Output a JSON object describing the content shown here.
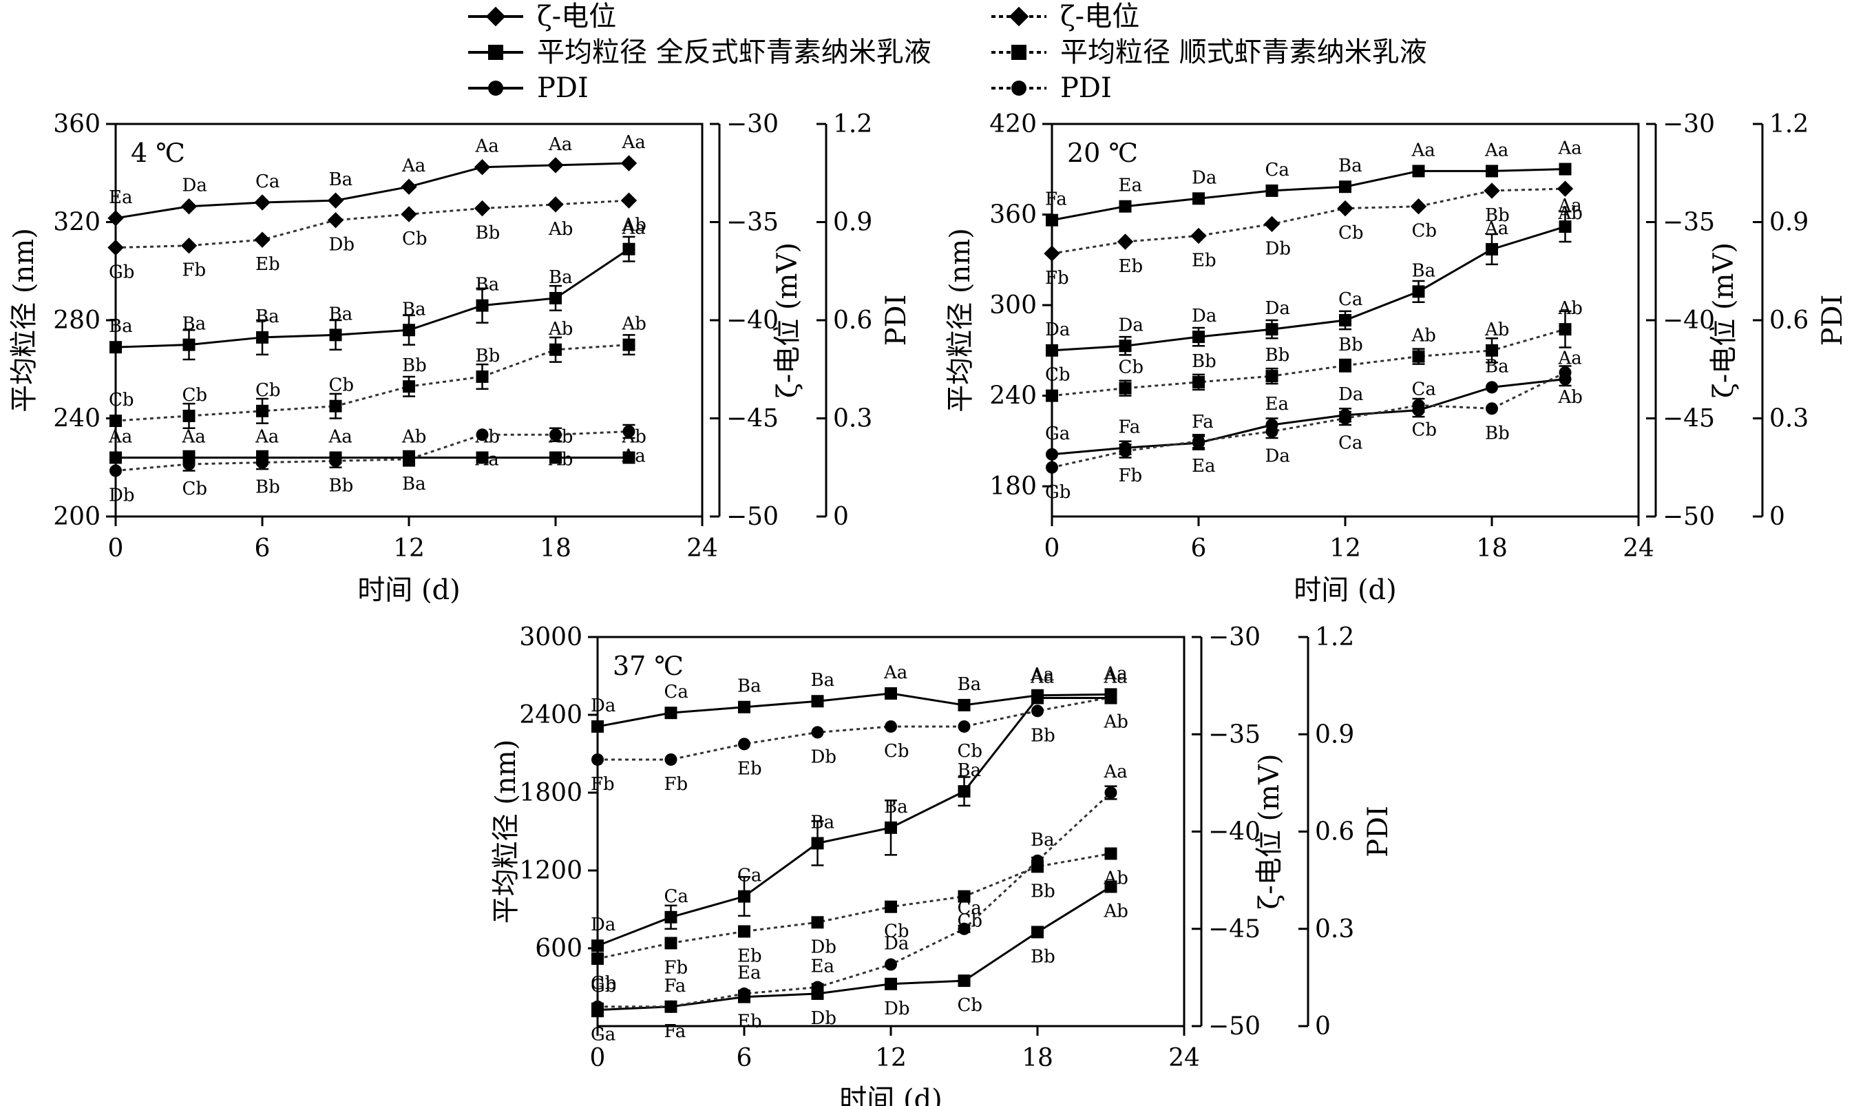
{
  "legend": {
    "groups": [
      {
        "title": "全反式虾青素纳米乳液",
        "style": "solid",
        "items": [
          {
            "marker": "diamond",
            "label": "ζ-电位"
          },
          {
            "marker": "square",
            "label": "平均粒径 全反式虾青素纳米乳液"
          },
          {
            "marker": "circle",
            "label": "PDI"
          }
        ]
      },
      {
        "title": "顺式虾青素纳米乳液",
        "style": "dotted",
        "items": [
          {
            "marker": "diamond",
            "label": "ζ-电位"
          },
          {
            "marker": "square",
            "label": "平均粒径 顺式虾青素纳米乳液"
          },
          {
            "marker": "circle",
            "label": "PDI"
          }
        ]
      }
    ]
  },
  "chart_data": [
    {
      "type": "line",
      "title": "4 ℃",
      "xlabel": "时间 (d)",
      "ylabel": "平均粒径 (nm)",
      "y2label": "ζ-电位 (mV)",
      "y3label": "PDI",
      "x": [
        0,
        3,
        6,
        9,
        12,
        15,
        18,
        21
      ],
      "xlim": [
        0,
        24
      ],
      "xticks": [
        0,
        6,
        12,
        18,
        24
      ],
      "ylim": [
        200,
        360
      ],
      "yticks": [
        200,
        240,
        280,
        320,
        360
      ],
      "y2lim": [
        -50,
        -30
      ],
      "y2ticks": [
        -50,
        -45,
        -40,
        -35,
        -30
      ],
      "y3lim": [
        0,
        1.2
      ],
      "y3ticks": [
        "0",
        "0.3",
        "0.6",
        "0.9",
        "1.2"
      ],
      "series": [
        {
          "name": "ζ-电位 全反式",
          "axis": "zeta",
          "style": "solid",
          "marker": "diamond",
          "values": [
            -34.8,
            -34.2,
            -34.0,
            -33.9,
            -33.2,
            -32.2,
            -32.1,
            -32.0
          ],
          "errors": [
            0,
            0,
            0,
            0,
            0,
            0,
            0,
            0
          ],
          "labels": [
            "Ea",
            "Da",
            "Ca",
            "Ba",
            "Aa",
            "Aa",
            "Aa",
            "Aa"
          ],
          "label_pos": "above"
        },
        {
          "name": "ζ-电位 顺式",
          "axis": "zeta",
          "style": "dotted",
          "marker": "diamond",
          "values": [
            -36.3,
            -36.2,
            -35.9,
            -34.9,
            -34.6,
            -34.3,
            -34.1,
            -33.9
          ],
          "errors": [
            0,
            0,
            0,
            0,
            0,
            0,
            0,
            0
          ],
          "labels": [
            "Gb",
            "Fb",
            "Eb",
            "Db",
            "Cb",
            "Bb",
            "Ab",
            "Ab"
          ],
          "label_pos": "below"
        },
        {
          "name": "平均粒径 全反式",
          "axis": "size",
          "style": "solid",
          "marker": "square",
          "values": [
            269,
            270,
            273,
            274,
            276,
            286,
            289,
            309
          ],
          "errors": [
            2,
            6,
            7,
            6,
            6,
            7,
            5,
            5
          ],
          "labels": [
            "Ba",
            "Ba",
            "Ba",
            "Ba",
            "Ba",
            "Ba",
            "Ba",
            "Aa"
          ],
          "label_pos": "above"
        },
        {
          "name": "平均粒径 顺式",
          "axis": "size",
          "style": "dotted",
          "marker": "square",
          "values": [
            239,
            241,
            243,
            245,
            253,
            257,
            268,
            270
          ],
          "errors": [
            1,
            5,
            5,
            5,
            4,
            5,
            5,
            4
          ],
          "labels": [
            "Cb",
            "Cb",
            "Cb",
            "Cb",
            "Bb",
            "Bb",
            "Ab",
            "Ab"
          ],
          "label_pos": "above"
        },
        {
          "name": "PDI 全反式",
          "axis": "pdi",
          "style": "solid",
          "marker": "square",
          "values": [
            0.18,
            0.18,
            0.18,
            0.18,
            0.18,
            0.18,
            0.18,
            0.18
          ],
          "errors": [
            0,
            0.02,
            0.02,
            0.01,
            0.02,
            0,
            0,
            0
          ],
          "labels": [
            "Aa",
            "Aa",
            "Aa",
            "Aa",
            "Ab",
            "Ab",
            "Ab",
            "Ab"
          ],
          "label_pos": "above"
        },
        {
          "name": "PDI 顺式",
          "axis": "pdi",
          "style": "dotted",
          "marker": "circle",
          "values": [
            0.14,
            0.16,
            0.165,
            0.17,
            0.175,
            0.25,
            0.25,
            0.26
          ],
          "errors": [
            0,
            0.02,
            0.02,
            0.02,
            0.02,
            0,
            0.02,
            0.02
          ],
          "labels": [
            "Db",
            "Cb",
            "Bb",
            "Bb",
            "Ba",
            "Aa",
            "Ab",
            "Aa"
          ],
          "label_pos": "below"
        }
      ]
    },
    {
      "type": "line",
      "title": "20 ℃",
      "xlabel": "时间 (d)",
      "ylabel": "平均粒径 (nm)",
      "y2label": "ζ-电位 (mV)",
      "y3label": "PDI",
      "x": [
        0,
        3,
        6,
        9,
        12,
        15,
        18,
        21
      ],
      "xlim": [
        0,
        24
      ],
      "xticks": [
        0,
        6,
        12,
        18,
        24
      ],
      "ylim": [
        160,
        420
      ],
      "yticks": [
        180,
        240,
        300,
        360,
        420
      ],
      "y2lim": [
        -50,
        -30
      ],
      "y2ticks": [
        -50,
        -45,
        -40,
        -35,
        -30
      ],
      "y3lim": [
        0,
        1.2
      ],
      "y3ticks": [
        "0",
        "0.3",
        "0.6",
        "0.9",
        "1.2"
      ],
      "series": [
        {
          "name": "ζ-电位 全反式",
          "axis": "zeta",
          "style": "solid",
          "marker": "square",
          "values": [
            -34.9,
            -34.2,
            -33.8,
            -33.4,
            -33.2,
            -32.4,
            -32.4,
            -32.3
          ],
          "errors": [
            0,
            0,
            0,
            0,
            0,
            0,
            0,
            0
          ],
          "labels": [
            "Fa",
            "Ea",
            "Da",
            "Ca",
            "Ba",
            "Aa",
            "Aa",
            "Aa"
          ],
          "label_pos": "above"
        },
        {
          "name": "ζ-电位 顺式",
          "axis": "zeta",
          "style": "dotted",
          "marker": "diamond",
          "values": [
            -36.6,
            -36.0,
            -35.7,
            -35.1,
            -34.3,
            -34.2,
            -33.4,
            -33.3
          ],
          "errors": [
            0,
            0,
            0,
            0,
            0,
            0,
            0,
            0
          ],
          "labels": [
            "Fb",
            "Eb",
            "Eb",
            "Db",
            "Cb",
            "Cb",
            "Bb",
            "Ab"
          ],
          "label_pos": "below"
        },
        {
          "name": "平均粒径 全反式",
          "axis": "size",
          "style": "solid",
          "marker": "square",
          "values": [
            270,
            273,
            279,
            284,
            290,
            309,
            337,
            352
          ],
          "errors": [
            2,
            6,
            6,
            6,
            6,
            7,
            10,
            10
          ],
          "labels": [
            "Da",
            "Da",
            "Da",
            "Da",
            "Ca",
            "Ba",
            "Aa",
            "Aa"
          ],
          "label_pos": "above"
        },
        {
          "name": "平均粒径 顺式",
          "axis": "size",
          "style": "dotted",
          "marker": "square",
          "values": [
            240,
            245,
            249,
            253,
            260,
            266,
            270,
            284
          ],
          "errors": [
            1,
            5,
            5,
            5,
            4,
            5,
            8,
            12
          ],
          "labels": [
            "Cb",
            "Cb",
            "Bb",
            "Bb",
            "Bb",
            "Ab",
            "Ab",
            "Ab"
          ],
          "label_pos": "above"
        },
        {
          "name": "PDI 全反式",
          "axis": "pdi",
          "style": "solid",
          "marker": "circle",
          "values": [
            0.19,
            0.21,
            0.225,
            0.28,
            0.31,
            0.325,
            0.395,
            0.42
          ],
          "errors": [
            0,
            0.02,
            0.02,
            0.02,
            0.02,
            0.02,
            0,
            0.02
          ],
          "labels": [
            "Ga",
            "Fa",
            "Fa",
            "Ea",
            "Da",
            "Ca",
            "Ba",
            "Aa"
          ],
          "label_pos": "above"
        },
        {
          "name": "PDI 顺式",
          "axis": "pdi",
          "style": "dotted",
          "marker": "circle",
          "values": [
            0.15,
            0.2,
            0.23,
            0.26,
            0.3,
            0.34,
            0.33,
            0.44
          ],
          "errors": [
            0,
            0.02,
            0.02,
            0.02,
            0.02,
            0.02,
            0,
            0.02
          ],
          "labels": [
            "Gb",
            "Fb",
            "Ea",
            "Da",
            "Ca",
            "Cb",
            "Bb",
            "Ab"
          ],
          "label_pos": "below"
        }
      ]
    },
    {
      "type": "line",
      "title": "37 ℃",
      "xlabel": "时间 (d)",
      "ylabel": "平均粒径 (nm)",
      "y2label": "ζ-电位 (mV)",
      "y3label": "PDI",
      "x": [
        0,
        3,
        6,
        9,
        12,
        15,
        18,
        21
      ],
      "xlim": [
        0,
        24
      ],
      "xticks": [
        0,
        6,
        12,
        18,
        24
      ],
      "ylim": [
        0,
        3000
      ],
      "yticks": [
        600,
        1200,
        1800,
        2400,
        3000
      ],
      "y2lim": [
        -50,
        -30
      ],
      "y2ticks": [
        -50,
        -45,
        -40,
        -35,
        -30
      ],
      "y3lim": [
        0,
        1.2
      ],
      "y3ticks": [
        "0",
        "0.3",
        "0.6",
        "0.9",
        "1.2"
      ],
      "series": [
        {
          "name": "ζ-电位 全反式",
          "axis": "zeta",
          "style": "solid",
          "marker": "square",
          "values": [
            -34.6,
            -33.9,
            -33.6,
            -33.3,
            -32.9,
            -33.5,
            -33.0,
            -32.95
          ],
          "errors": [
            0,
            0,
            0,
            0,
            0,
            0,
            0,
            0
          ],
          "labels": [
            "Da",
            "Ca",
            "Ba",
            "Ba",
            "Aa",
            "Ba",
            "Aa",
            "Aa"
          ],
          "label_pos": "above"
        },
        {
          "name": "ζ-电位 顺式",
          "axis": "zeta",
          "style": "dotted",
          "marker": "circle",
          "values": [
            -36.3,
            -36.3,
            -35.5,
            -34.9,
            -34.6,
            -34.6,
            -33.8,
            -33.1
          ],
          "errors": [
            0,
            0,
            0,
            0,
            0,
            0,
            0,
            0
          ],
          "labels": [
            "Fb",
            "Fb",
            "Eb",
            "Db",
            "Cb",
            "Cb",
            "Bb",
            "Ab"
          ],
          "label_pos": "below"
        },
        {
          "name": "平均粒径 全反式",
          "axis": "size",
          "style": "solid",
          "marker": "square",
          "values": [
            620,
            840,
            1000,
            1410,
            1530,
            1810,
            2530,
            2530
          ],
          "errors": [
            0,
            90,
            150,
            170,
            210,
            110,
            0,
            0
          ],
          "labels": [
            "Da",
            "Ca",
            "Ca",
            "Ba",
            "Ba",
            "Ba",
            "Aa",
            "Aa"
          ],
          "label_pos": "above"
        },
        {
          "name": "平均粒径 顺式",
          "axis": "size",
          "style": "dotted",
          "marker": "square",
          "values": [
            520,
            640,
            730,
            800,
            920,
            1000,
            1230,
            1330
          ],
          "errors": [
            0,
            0,
            0,
            0,
            0,
            0,
            0,
            0
          ],
          "labels": [
            "Gb",
            "Fb",
            "Eb",
            "Db",
            "Cb",
            "Cb",
            "Bb",
            "Ab"
          ],
          "label_pos": "below"
        },
        {
          "name": "PDI 全反式",
          "axis": "pdi",
          "style": "solid",
          "marker": "square",
          "values": [
            0.05,
            0.06,
            0.09,
            0.1,
            0.13,
            0.14,
            0.29,
            0.43
          ],
          "errors": [
            0.02,
            0,
            0,
            0,
            0,
            0,
            0.01,
            0.01
          ],
          "labels": [
            "Ga",
            "Fa",
            "Eb",
            "Db",
            "Db",
            "Cb",
            "Bb",
            "Ab"
          ],
          "label_pos": "below"
        },
        {
          "name": "PDI 顺式",
          "axis": "pdi",
          "style": "dotted",
          "marker": "circle",
          "values": [
            0.06,
            0.06,
            0.1,
            0.12,
            0.19,
            0.3,
            0.51,
            0.72
          ],
          "errors": [
            0,
            0,
            0.01,
            0.01,
            0,
            0.01,
            0.01,
            0.02
          ],
          "labels": [
            "Gb",
            "Fa",
            "Ea",
            "Ea",
            "Da",
            "Ca",
            "Ba",
            "Aa"
          ],
          "label_pos": "above"
        }
      ]
    }
  ]
}
